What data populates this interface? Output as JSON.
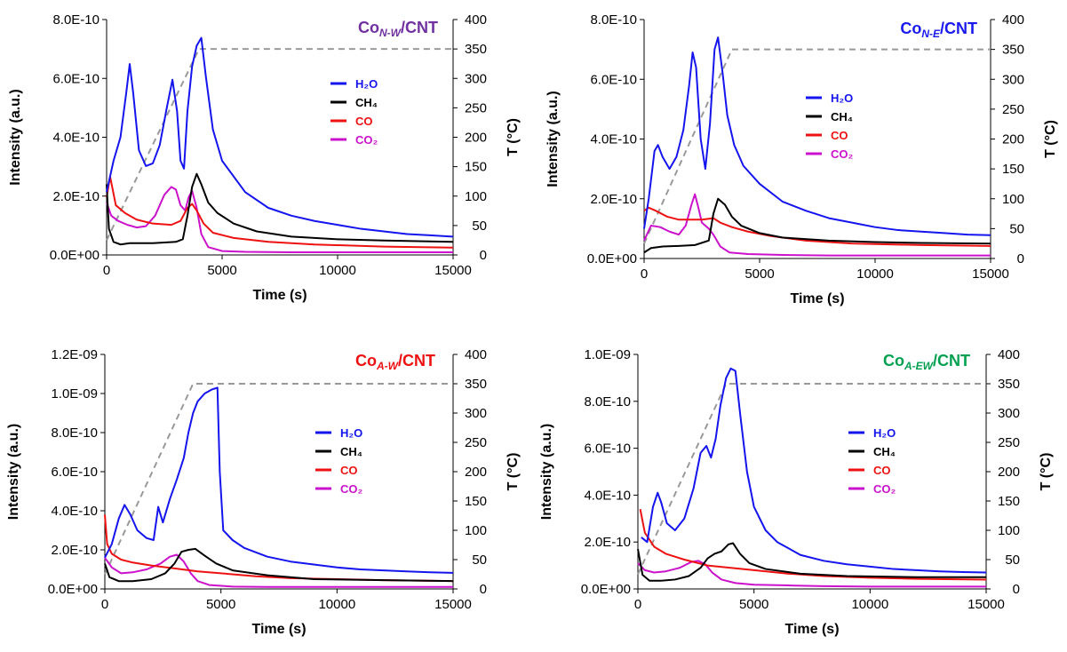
{
  "colors": {
    "H2O": "#1414ee",
    "CH4": "#000000",
    "CO": "#ee1111",
    "CO2": "#cc11cc",
    "temperature": "#999999"
  },
  "chart_data": [
    {
      "type": "line",
      "title_prefix": "Co",
      "title_sub": "N-W",
      "title_suffix": "/CNT",
      "title_color": "#7030a0",
      "xlabel": "Time (s)",
      "ylabel": "Intensity (a.u.)",
      "y2label": "T (°C)",
      "xlim": [
        0,
        15000
      ],
      "xticks": [
        "0",
        "5000",
        "10000",
        "15000"
      ],
      "ylim": [
        0,
        9e-10
      ],
      "yticks": [
        "0.0E+00",
        "2.0E-10",
        "4.0E-10",
        "6.0E-10",
        "8.0E-10"
      ],
      "y2lim": [
        0,
        400
      ],
      "y2ticks": [
        "0",
        "50",
        "100",
        "150",
        "200",
        "250",
        "300",
        "350",
        "400"
      ],
      "legend_placement": "center-right",
      "series": [
        {
          "name": "H₂O",
          "key": "H2O",
          "x": [
            0,
            300,
            600,
            850,
            1000,
            1150,
            1400,
            1700,
            2000,
            2300,
            2600,
            2850,
            3050,
            3200,
            3350,
            3500,
            3700,
            3900,
            4100,
            4300,
            4600,
            5000,
            6000,
            7000,
            8000,
            9000,
            10000,
            11000,
            12000,
            13000,
            14000,
            15000
          ],
          "y": [
            2.4e-10,
            3.6e-10,
            4.5e-10,
            6.2e-10,
            7.3e-10,
            6.2e-10,
            4e-10,
            3.4e-10,
            3.5e-10,
            4.2e-10,
            5.6e-10,
            6.7e-10,
            5.5e-10,
            3.6e-10,
            3.3e-10,
            5.5e-10,
            7.2e-10,
            8e-10,
            8.3e-10,
            6.8e-10,
            4.8e-10,
            3.6e-10,
            2.4e-10,
            1.8e-10,
            1.5e-10,
            1.3e-10,
            1.15e-10,
            1e-10,
            9e-11,
            8e-11,
            7.5e-11,
            7e-11
          ]
        },
        {
          "name": "CH₄",
          "key": "CH4",
          "x": [
            0,
            100,
            300,
            600,
            1000,
            2000,
            3000,
            3300,
            3500,
            3700,
            3900,
            4100,
            4400,
            4800,
            5500,
            6500,
            8000,
            10000,
            12000,
            15000
          ],
          "y": [
            2.7e-10,
            1e-10,
            5e-11,
            4e-11,
            4.5e-11,
            4.5e-11,
            5e-11,
            6e-11,
            1.5e-10,
            2.6e-10,
            3.1e-10,
            2.7e-10,
            2e-10,
            1.6e-10,
            1.2e-10,
            9e-11,
            7e-11,
            6e-11,
            5.5e-11,
            5e-11
          ]
        },
        {
          "name": "CO",
          "key": "CO",
          "x": [
            0,
            150,
            400,
            800,
            1300,
            2000,
            2800,
            3200,
            3500,
            3700,
            3900,
            4200,
            4600,
            5500,
            7000,
            9000,
            12000,
            15000
          ],
          "y": [
            2.2e-10,
            3e-10,
            1.9e-10,
            1.6e-10,
            1.35e-10,
            1.2e-10,
            1.15e-10,
            1.3e-10,
            1.8e-10,
            1.95e-10,
            1.7e-10,
            1.2e-10,
            8.5e-11,
            6.5e-11,
            5e-11,
            4e-11,
            3.2e-11,
            2.8e-11
          ]
        },
        {
          "name": "CO₂",
          "key": "CO2",
          "x": [
            0,
            200,
            500,
            900,
            1300,
            1700,
            2100,
            2500,
            2800,
            3000,
            3200,
            3400,
            3550,
            3700,
            3900,
            4100,
            4400,
            5000,
            6000,
            8000,
            10000,
            15000
          ],
          "y": [
            2e-10,
            1.5e-10,
            1.3e-10,
            1.15e-10,
            1.05e-10,
            1.1e-10,
            1.5e-10,
            2.3e-10,
            2.6e-10,
            2.5e-10,
            1.9e-10,
            1.7e-10,
            2.2e-10,
            2.45e-10,
            1.8e-10,
            8e-11,
            3e-11,
            1.5e-11,
            1.2e-11,
            1e-11,
            1e-11,
            1e-11
          ]
        }
      ],
      "temperature": {
        "name": "T",
        "x": [
          0,
          4000,
          15000
        ],
        "y": [
          25,
          350,
          350
        ]
      }
    },
    {
      "type": "line",
      "title_prefix": "Co",
      "title_sub": "N-E",
      "title_suffix": "/CNT",
      "title_color": "#1a1aee",
      "xlabel": "Time (s)",
      "ylabel": "Intensity (a.u.)",
      "y2label": "T (°C)",
      "xlim": [
        0,
        15000
      ],
      "xticks": [
        "0",
        "5000",
        "10000",
        "15000"
      ],
      "ylim": [
        0,
        8e-10
      ],
      "yticks": [
        "0.0E+00",
        "2.0E-10",
        "4.0E-10",
        "6.0E-10",
        "8.0E-10"
      ],
      "y2lim": [
        0,
        400
      ],
      "y2ticks": [
        "0",
        "50",
        "100",
        "150",
        "200",
        "250",
        "300",
        "350",
        "400"
      ],
      "legend_placement": "center-right",
      "series": [
        {
          "name": "H₂O",
          "key": "H2O",
          "x": [
            0,
            200,
            450,
            600,
            800,
            1100,
            1400,
            1700,
            1950,
            2100,
            2250,
            2450,
            2650,
            2850,
            3050,
            3200,
            3400,
            3600,
            3900,
            4300,
            5000,
            6000,
            7000,
            8000,
            9000,
            10000,
            11000,
            12000,
            13000,
            14000,
            15000
          ],
          "y": [
            1e-10,
            2e-10,
            3.6e-10,
            3.8e-10,
            3.4e-10,
            3e-10,
            3.4e-10,
            4.3e-10,
            5.8e-10,
            6.9e-10,
            6.4e-10,
            4e-10,
            3e-10,
            4.5e-10,
            7e-10,
            7.4e-10,
            6.2e-10,
            4.8e-10,
            3.8e-10,
            3.1e-10,
            2.5e-10,
            1.9e-10,
            1.6e-10,
            1.35e-10,
            1.2e-10,
            1.05e-10,
            9.5e-11,
            9e-11,
            8.5e-11,
            8e-11,
            7.8e-11
          ]
        },
        {
          "name": "CH₄",
          "key": "CH4",
          "x": [
            0,
            300,
            800,
            1500,
            2200,
            2800,
            3000,
            3200,
            3500,
            3800,
            4200,
            5000,
            6000,
            8000,
            10000,
            12000,
            15000
          ],
          "y": [
            2e-11,
            3.5e-11,
            4e-11,
            4.2e-11,
            4.5e-11,
            6e-11,
            1.5e-10,
            2e-10,
            1.8e-10,
            1.4e-10,
            1.1e-10,
            8.5e-11,
            7e-11,
            6e-11,
            5.5e-11,
            5.2e-11,
            5e-11
          ]
        },
        {
          "name": "CO",
          "key": "CO",
          "x": [
            0,
            200,
            500,
            1000,
            1500,
            2000,
            2500,
            3000,
            3300,
            3800,
            4500,
            5500,
            7000,
            9000,
            12000,
            15000
          ],
          "y": [
            1.6e-10,
            1.7e-10,
            1.6e-10,
            1.4e-10,
            1.3e-10,
            1.3e-10,
            1.3e-10,
            1.35e-10,
            1.2e-10,
            1.05e-10,
            9e-11,
            7.5e-11,
            6e-11,
            5e-11,
            4.5e-11,
            4.2e-11
          ]
        },
        {
          "name": "CO₂",
          "key": "CO2",
          "x": [
            0,
            300,
            700,
            1100,
            1500,
            1800,
            2050,
            2200,
            2350,
            2500,
            2800,
            3000,
            3300,
            3700,
            4500,
            6000,
            8000,
            10000,
            15000
          ],
          "y": [
            6e-11,
            1.1e-10,
            1.05e-10,
            9e-11,
            8e-11,
            1.1e-10,
            1.8e-10,
            2.15e-10,
            1.7e-10,
            1.2e-10,
            1e-10,
            8e-11,
            4e-11,
            2e-11,
            1.5e-11,
            1.2e-11,
            1e-11,
            1e-11,
            1e-11
          ]
        }
      ],
      "temperature": {
        "name": "T",
        "x": [
          0,
          3800,
          15000
        ],
        "y": [
          25,
          350,
          350
        ]
      }
    },
    {
      "type": "line",
      "title_prefix": "Co",
      "title_sub": "A-W",
      "title_suffix": "/CNT",
      "title_color": "#ee1111",
      "xlabel": "Time (s)",
      "ylabel": "Intensity (a.u.)",
      "y2label": "T (°C)",
      "xlim": [
        0,
        15000
      ],
      "xticks": [
        "0",
        "5000",
        "10000",
        "15000"
      ],
      "ylim": [
        0,
        1.2e-09
      ],
      "yticks": [
        "0.0E+00",
        "2.0E-10",
        "4.0E-10",
        "6.0E-10",
        "8.0E-10",
        "1.0E-09",
        "1.2E-09"
      ],
      "y2lim": [
        0,
        400
      ],
      "y2ticks": [
        "0",
        "50",
        "100",
        "150",
        "200",
        "250",
        "300",
        "350",
        "400"
      ],
      "legend_placement": "center-right",
      "series": [
        {
          "name": "H₂O",
          "key": "H2O",
          "x": [
            0,
            300,
            600,
            850,
            1100,
            1400,
            1800,
            2100,
            2300,
            2500,
            2800,
            3100,
            3400,
            3600,
            3800,
            4000,
            4300,
            4600,
            4850,
            4950,
            5100,
            5500,
            6000,
            7000,
            8000,
            9000,
            10000,
            11000,
            12000,
            13000,
            14000,
            15000
          ],
          "y": [
            1.6e-10,
            2.3e-10,
            3.6e-10,
            4.3e-10,
            3.8e-10,
            3e-10,
            2.6e-10,
            2.5e-10,
            4.2e-10,
            3.4e-10,
            4.6e-10,
            5.6e-10,
            6.7e-10,
            8e-10,
            9e-10,
            9.6e-10,
            1e-09,
            1.02e-09,
            1.03e-09,
            6e-10,
            3e-10,
            2.5e-10,
            2.1e-10,
            1.65e-10,
            1.4e-10,
            1.25e-10,
            1.1e-10,
            1e-10,
            9.5e-11,
            9e-11,
            8.5e-11,
            8.2e-11
          ]
        },
        {
          "name": "CH₄",
          "key": "CH4",
          "x": [
            0,
            200,
            600,
            1200,
            2000,
            2600,
            3000,
            3300,
            3600,
            3900,
            4300,
            4800,
            5500,
            7000,
            9000,
            12000,
            15000
          ],
          "y": [
            1.3e-10,
            6e-11,
            4e-11,
            4e-11,
            5e-11,
            8e-11,
            1.3e-10,
            1.9e-10,
            2e-10,
            2.05e-10,
            1.7e-10,
            1.3e-10,
            9.5e-11,
            7e-11,
            5e-11,
            4.5e-11,
            4e-11
          ]
        },
        {
          "name": "CO",
          "key": "CO",
          "x": [
            0,
            100,
            300,
            700,
            1200,
            2000,
            3000,
            4000,
            5000,
            6500,
            8000,
            10000,
            12000,
            15000
          ],
          "y": [
            3.8e-10,
            2.3e-10,
            1.8e-10,
            1.5e-10,
            1.35e-10,
            1.2e-10,
            1.05e-10,
            9e-11,
            8e-11,
            6.5e-11,
            5.5e-11,
            5e-11,
            4.5e-11,
            4e-11
          ]
        },
        {
          "name": "CO₂",
          "key": "CO2",
          "x": [
            0,
            300,
            700,
            1200,
            1800,
            2400,
            2800,
            3100,
            3400,
            3700,
            4000,
            4500,
            5500,
            7000,
            10000,
            15000
          ],
          "y": [
            1.6e-10,
            1.1e-10,
            8e-11,
            8.5e-11,
            1e-10,
            1.3e-10,
            1.65e-10,
            1.75e-10,
            1.4e-10,
            8e-11,
            4e-11,
            2e-11,
            1.2e-11,
            1e-11,
            1e-11,
            1e-11
          ]
        }
      ],
      "temperature": {
        "name": "T",
        "x": [
          0,
          3800,
          15000
        ],
        "y": [
          25,
          350,
          350
        ]
      }
    },
    {
      "type": "line",
      "title_prefix": "Co",
      "title_sub": "A-EW",
      "title_suffix": "/CNT",
      "title_color": "#00a050",
      "xlabel": "Time (s)",
      "ylabel": "Intensity (a.u.)",
      "y2label": "T (°C)",
      "xlim": [
        0,
        15000
      ],
      "xticks": [
        "0",
        "5000",
        "10000",
        "15000"
      ],
      "ylim": [
        0,
        1e-09
      ],
      "yticks": [
        "0.0E+00",
        "2.0E-10",
        "4.0E-10",
        "6.0E-10",
        "8.0E-10",
        "1.0E-09"
      ],
      "y2lim": [
        0,
        400
      ],
      "y2ticks": [
        "0",
        "50",
        "100",
        "150",
        "200",
        "250",
        "300",
        "350",
        "400"
      ],
      "legend_placement": "center-right",
      "series": [
        {
          "name": "H₂O",
          "key": "H2O",
          "x": [
            150,
            400,
            650,
            850,
            1000,
            1250,
            1600,
            2000,
            2400,
            2700,
            2950,
            3150,
            3350,
            3550,
            3800,
            4000,
            4200,
            4400,
            4700,
            5000,
            5500,
            6000,
            7000,
            8000,
            9000,
            10000,
            11000,
            12000,
            13000,
            14000,
            15000
          ],
          "y": [
            2.2e-10,
            2e-10,
            3.5e-10,
            4.1e-10,
            3.7e-10,
            2.8e-10,
            2.5e-10,
            3e-10,
            4.3e-10,
            5.8e-10,
            6.1e-10,
            5.6e-10,
            6.4e-10,
            7.8e-10,
            9e-10,
            9.4e-10,
            9.3e-10,
            7.5e-10,
            5e-10,
            3.5e-10,
            2.5e-10,
            2e-10,
            1.45e-10,
            1.2e-10,
            1.05e-10,
            9.5e-11,
            8.5e-11,
            8e-11,
            7.5e-11,
            7.2e-11,
            7e-11
          ]
        },
        {
          "name": "CH₄",
          "key": "CH4",
          "x": [
            0,
            200,
            500,
            1000,
            1600,
            2200,
            2700,
            3000,
            3300,
            3600,
            3900,
            4100,
            4400,
            4800,
            5500,
            7000,
            9000,
            12000,
            15000
          ],
          "y": [
            1.7e-10,
            6e-11,
            3.5e-11,
            3.5e-11,
            4e-11,
            5.5e-11,
            9e-11,
            1.3e-10,
            1.5e-10,
            1.6e-10,
            1.9e-10,
            1.95e-10,
            1.5e-10,
            1.1e-10,
            8.5e-11,
            6.5e-11,
            5.5e-11,
            5e-11,
            5e-11
          ]
        },
        {
          "name": "CO",
          "key": "CO",
          "x": [
            100,
            300,
            700,
            1200,
            2000,
            3000,
            4000,
            5000,
            6500,
            8000,
            10000,
            12000,
            15000
          ],
          "y": [
            3.4e-10,
            2.4e-10,
            1.8e-10,
            1.5e-10,
            1.25e-10,
            1e-10,
            9e-11,
            8e-11,
            6.5e-11,
            5.5e-11,
            4.8e-11,
            4.3e-11,
            4e-11
          ]
        },
        {
          "name": "CO₂",
          "key": "CO2",
          "x": [
            0,
            300,
            700,
            1200,
            1800,
            2300,
            2600,
            2900,
            3200,
            3600,
            4200,
            5000,
            6500,
            8000,
            10000,
            15000
          ],
          "y": [
            1.1e-10,
            8e-11,
            7e-11,
            7.5e-11,
            9e-11,
            1.15e-10,
            1.2e-10,
            1.05e-10,
            7e-11,
            4e-11,
            2.5e-11,
            1.8e-11,
            1.5e-11,
            1.2e-11,
            1e-11,
            1e-11
          ]
        }
      ],
      "temperature": {
        "name": "T",
        "x": [
          0,
          3800,
          15000
        ],
        "y": [
          25,
          350,
          350
        ]
      }
    }
  ]
}
